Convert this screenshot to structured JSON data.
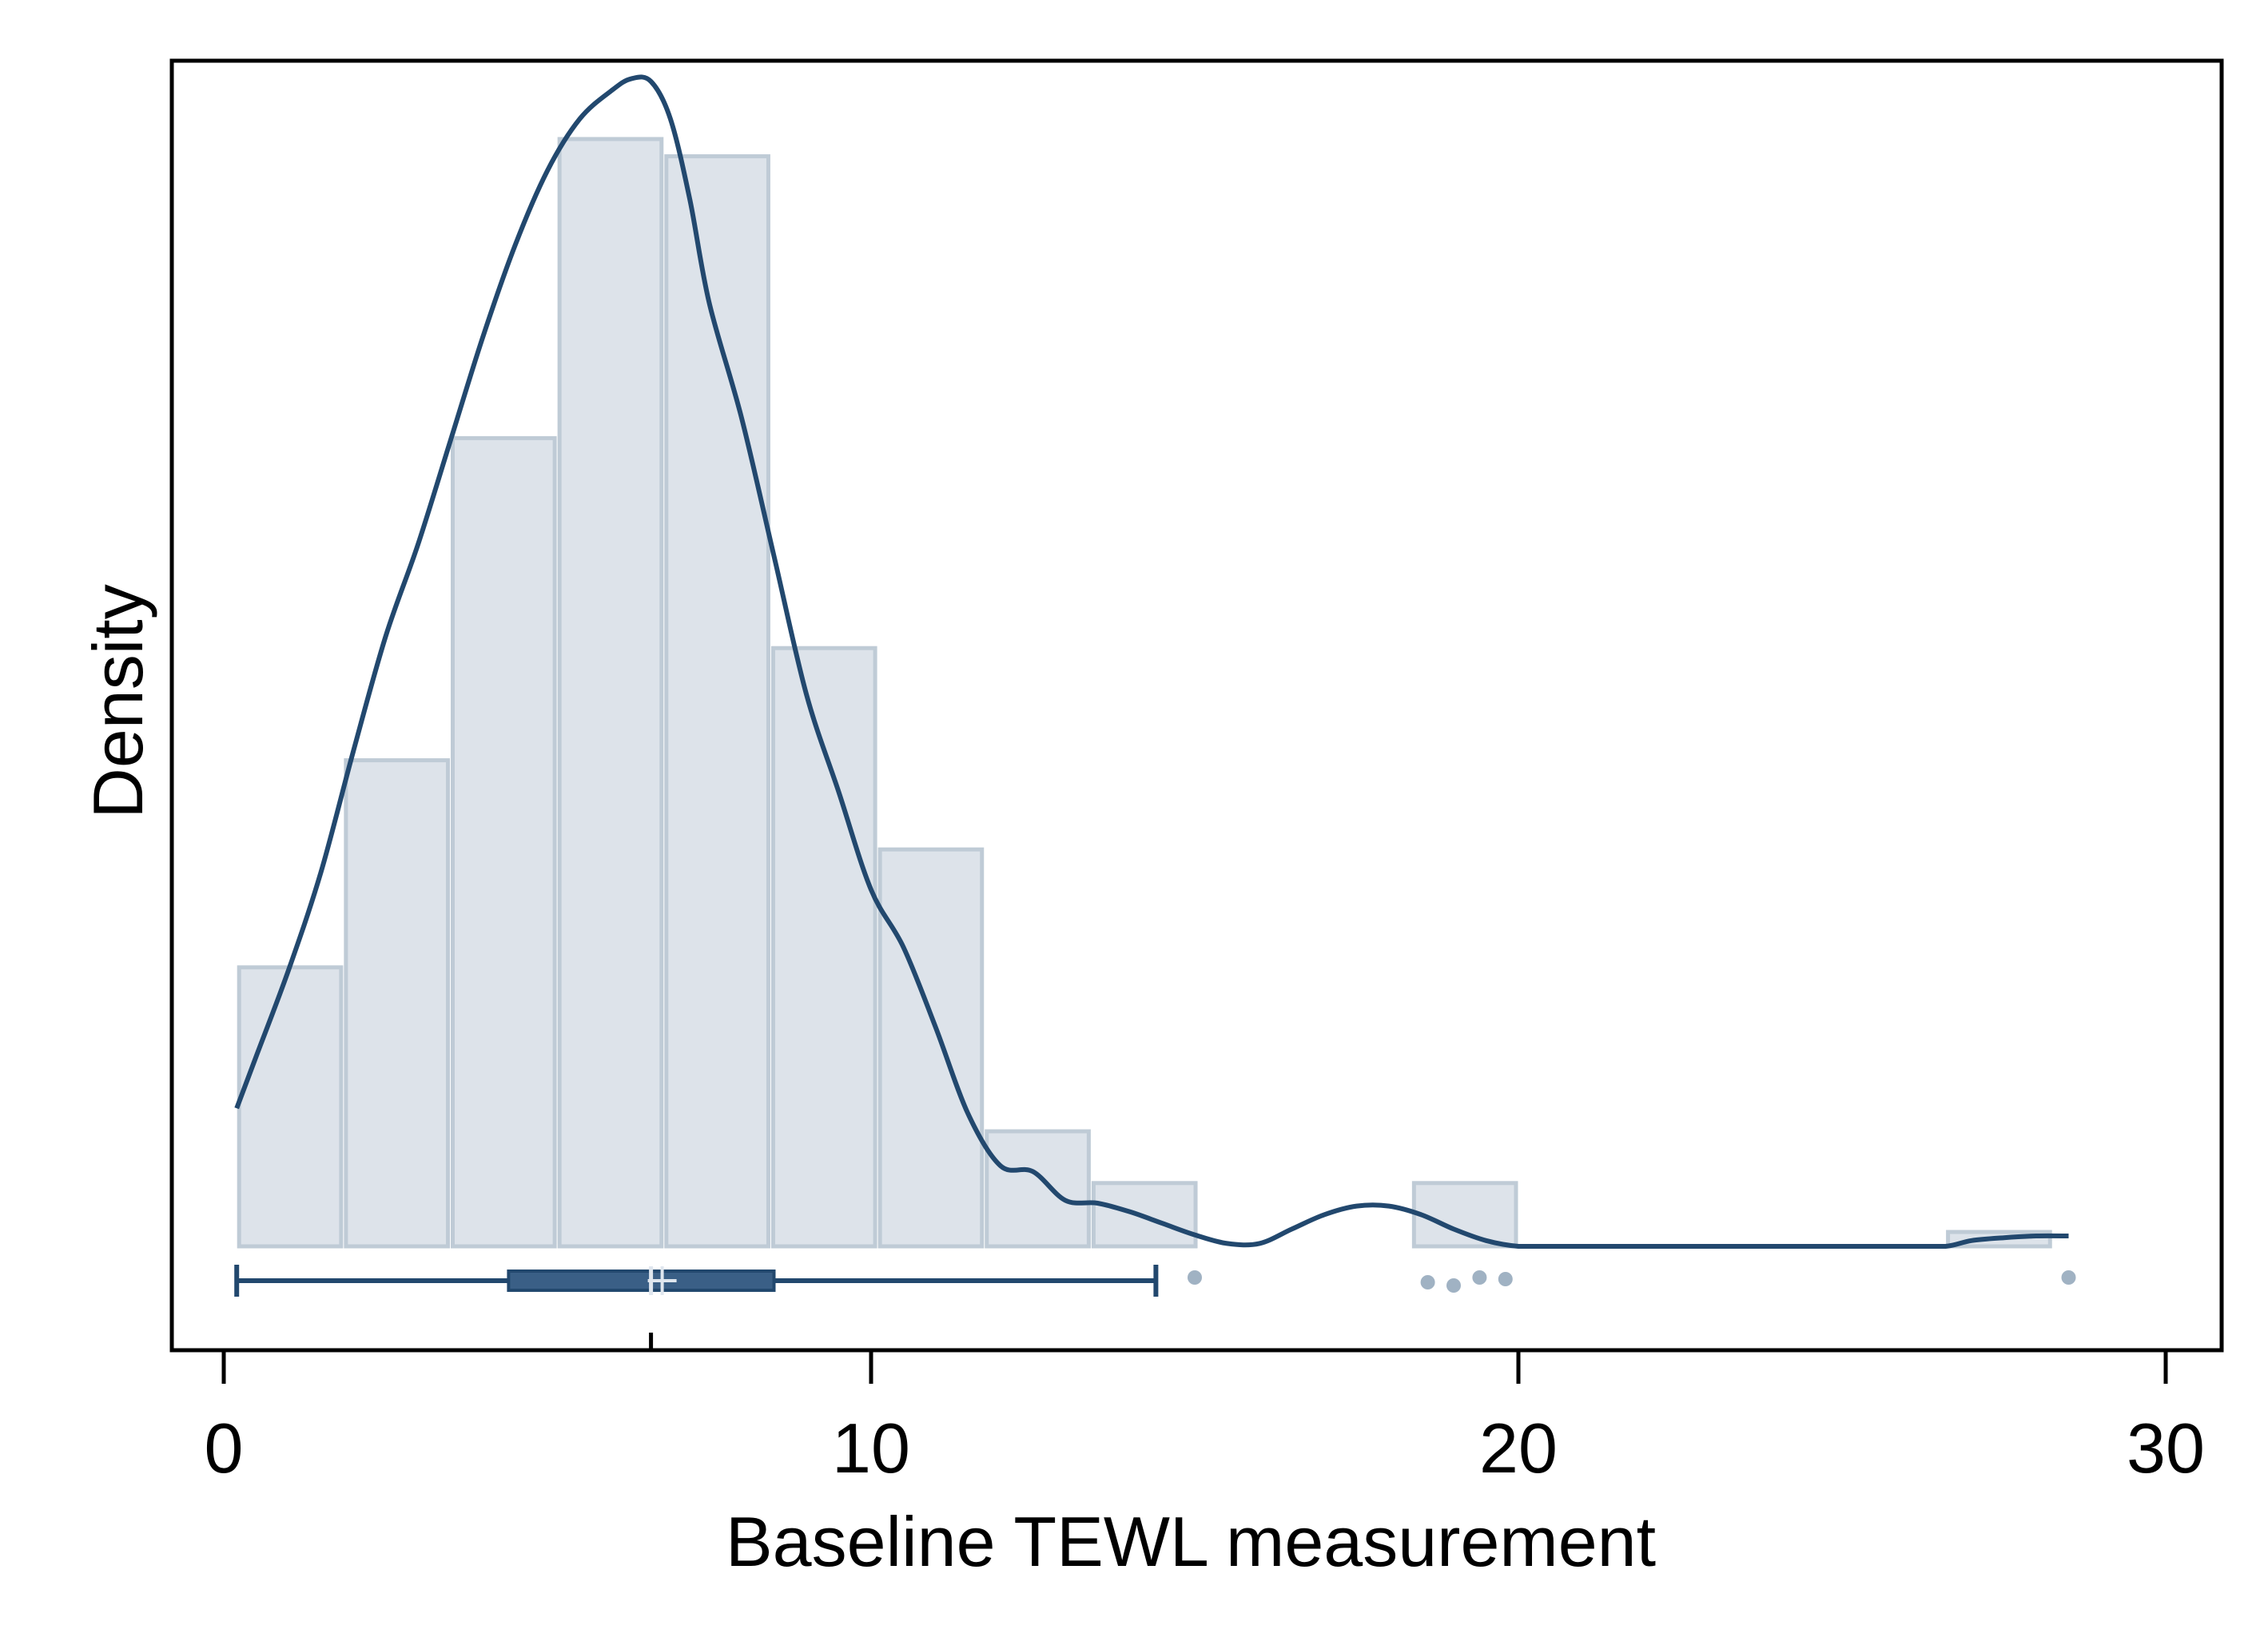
{
  "chart_data": {
    "type": "histogram",
    "overlays": [
      "kernel-density",
      "box-plot"
    ],
    "xlabel": "Baseline TEWL measurement",
    "ylabel": "Density",
    "xlim": [
      -0.8,
      30.8
    ],
    "x_ticks": [
      0,
      10,
      20,
      30
    ],
    "x_tick_labels": [
      "0",
      "10",
      "20",
      "30"
    ],
    "y_ticks_shown": false,
    "grid": false,
    "legend": "none",
    "histogram": {
      "bin_width": 1.66,
      "bins": [
        {
          "start": 0.2,
          "end": 1.85,
          "density": 0.0485
        },
        {
          "start": 1.85,
          "end": 3.5,
          "density": 0.0845
        },
        {
          "start": 3.5,
          "end": 5.15,
          "density": 0.1405
        },
        {
          "start": 5.15,
          "end": 6.8,
          "density": 0.1925
        },
        {
          "start": 6.8,
          "end": 8.45,
          "density": 0.1895
        },
        {
          "start": 8.45,
          "end": 10.1,
          "density": 0.104
        },
        {
          "start": 10.1,
          "end": 11.75,
          "density": 0.069
        },
        {
          "start": 11.75,
          "end": 13.4,
          "density": 0.02
        },
        {
          "start": 13.4,
          "end": 15.05,
          "density": 0.011
        },
        {
          "start": 15.05,
          "end": 16.7,
          "density": 0
        },
        {
          "start": 16.7,
          "end": 18.35,
          "density": 0
        },
        {
          "start": 18.35,
          "end": 20.0,
          "density": 0.011
        },
        {
          "start": 20.0,
          "end": 21.65,
          "density": 0
        },
        {
          "start": 21.65,
          "end": 23.3,
          "density": 0
        },
        {
          "start": 23.3,
          "end": 24.95,
          "density": 0
        },
        {
          "start": 24.95,
          "end": 26.6,
          "density": 0
        },
        {
          "start": 26.6,
          "end": 28.25,
          "density": 0.0025
        }
      ]
    },
    "density_curve": {
      "x": [
        0.2,
        0.5,
        1.0,
        1.5,
        2.0,
        2.5,
        3.0,
        3.5,
        4.0,
        4.5,
        5.0,
        5.5,
        6.0,
        6.3,
        6.6,
        6.9,
        7.2,
        7.5,
        8.0,
        8.5,
        9.0,
        9.5,
        10.0,
        10.5,
        11.0,
        11.5,
        12.0,
        12.5,
        13.0,
        13.5,
        14.0,
        14.5,
        15.0,
        15.5,
        16.0,
        16.5,
        17.0,
        17.5,
        18.0,
        18.5,
        19.0,
        19.5,
        20.0,
        20.5,
        21.0,
        21.5,
        22.0,
        23.0,
        24.0,
        25.0,
        26.0,
        26.6,
        27.0,
        27.5,
        28.0,
        28.5
      ],
      "y": [
        0.024,
        0.033,
        0.048,
        0.065,
        0.086,
        0.106,
        0.122,
        0.14,
        0.158,
        0.174,
        0.187,
        0.196,
        0.201,
        0.203,
        0.2025,
        0.196,
        0.182,
        0.164,
        0.144,
        0.12,
        0.096,
        0.079,
        0.062,
        0.052,
        0.038,
        0.023,
        0.014,
        0.013,
        0.008,
        0.0075,
        0.006,
        0.004,
        0.002,
        0.0005,
        0.0005,
        0.003,
        0.0055,
        0.007,
        0.007,
        0.0055,
        0.003,
        0.001,
        0.0,
        0.0,
        0.0,
        0.0,
        0.0,
        0.0,
        0.0,
        0.0,
        0.0,
        0.0,
        0.001,
        0.0015,
        0.0018,
        0.0018
      ]
    },
    "box_plot": {
      "whisker_low": 0.2,
      "q1": 4.4,
      "median": 6.6,
      "mean": 6.6,
      "q3": 8.5,
      "whisker_high": 14.4,
      "outliers": [
        15.0,
        18.6,
        19.0,
        19.4,
        19.8,
        28.5
      ]
    },
    "colors": {
      "bar_fill": "#dde3ea",
      "bar_edge": "#bfcbd6",
      "curve": "#22486e",
      "box_fill": "#3a5f86",
      "outlier": "#a0b2c3",
      "axis": "#000000"
    }
  }
}
